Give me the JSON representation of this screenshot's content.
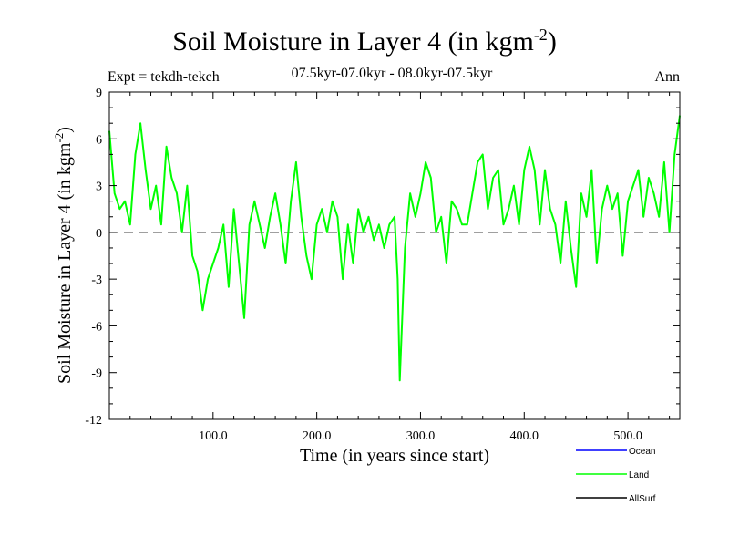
{
  "chart_data": {
    "type": "line",
    "title_main": "Soil Moisture in Layer 4 (in kgm",
    "title_sup": "-2",
    "title_end": ")",
    "subtitle": "07.5kyr-07.0kyr - 08.0kyr-07.5kyr",
    "experiment": "Expt = tekdh-tekch",
    "season": "Ann",
    "xlabel": "Time (in years since start)",
    "ylabel_main": "Soil Moisture in Layer 4 (in kgm",
    "ylabel_sup": "-2",
    "ylabel_end": ")",
    "xlim": [
      0,
      550
    ],
    "ylim": [
      -12,
      9
    ],
    "xticks": [
      100,
      200,
      300,
      400,
      500
    ],
    "xtick_labels": [
      "100.0",
      "200.0",
      "300.0",
      "400.0",
      "500.0"
    ],
    "yticks": [
      -12,
      -9,
      -6,
      -3,
      0,
      3,
      6,
      9
    ],
    "ytick_labels": [
      "-12",
      "-9",
      "-6",
      "-3",
      "0",
      "3",
      "6",
      "9"
    ],
    "zero_line": "dashed",
    "series": [
      {
        "name": "Ocean",
        "color": "#0000ff",
        "values": []
      },
      {
        "name": "Land",
        "color": "#00ff00",
        "x": [
          0,
          5,
          10,
          15,
          20,
          25,
          30,
          35,
          40,
          45,
          50,
          55,
          60,
          65,
          70,
          75,
          80,
          85,
          90,
          95,
          100,
          105,
          110,
          115,
          120,
          125,
          130,
          135,
          140,
          145,
          150,
          155,
          160,
          165,
          170,
          175,
          180,
          185,
          190,
          195,
          200,
          205,
          210,
          215,
          220,
          225,
          230,
          235,
          240,
          245,
          250,
          255,
          260,
          265,
          270,
          275,
          278,
          280,
          285,
          290,
          295,
          300,
          305,
          310,
          315,
          320,
          325,
          330,
          335,
          340,
          345,
          350,
          355,
          360,
          365,
          370,
          375,
          380,
          385,
          390,
          395,
          400,
          405,
          410,
          415,
          420,
          425,
          430,
          435,
          440,
          445,
          450,
          455,
          460,
          465,
          470,
          475,
          480,
          485,
          490,
          495,
          500,
          505,
          510,
          515,
          520,
          525,
          530,
          535,
          540,
          545,
          550
        ],
        "values": [
          6.5,
          2.5,
          1.5,
          2.0,
          0.5,
          5.0,
          7.0,
          4.0,
          1.5,
          3.0,
          0.5,
          5.5,
          3.5,
          2.5,
          0.0,
          3.0,
          -1.5,
          -2.5,
          -5.0,
          -3.0,
          -2.0,
          -1.0,
          0.5,
          -3.5,
          1.5,
          -2.0,
          -5.5,
          0.5,
          2.0,
          0.5,
          -1.0,
          1.0,
          2.5,
          0.5,
          -2.0,
          2.0,
          4.5,
          1.0,
          -1.5,
          -3.0,
          0.5,
          1.5,
          0.0,
          2.0,
          1.0,
          -3.0,
          0.5,
          -2.0,
          1.5,
          0.0,
          1.0,
          -0.5,
          0.5,
          -1.0,
          0.5,
          1.0,
          -3.0,
          -9.5,
          -1.0,
          2.5,
          1.0,
          2.5,
          4.5,
          3.5,
          0.0,
          1.0,
          -2.0,
          2.0,
          1.5,
          0.5,
          0.5,
          2.5,
          4.5,
          5.0,
          1.5,
          3.5,
          4.0,
          0.5,
          1.5,
          3.0,
          0.5,
          4.0,
          5.5,
          4.0,
          0.5,
          4.0,
          1.5,
          0.5,
          -2.0,
          2.0,
          -1.0,
          -3.5,
          2.5,
          1.0,
          4.0,
          -2.0,
          1.5,
          3.0,
          1.5,
          2.5,
          -1.5,
          2.0,
          3.0,
          4.0,
          1.0,
          3.5,
          2.5,
          1.0,
          4.5,
          0.0,
          5.0,
          7.5
        ]
      },
      {
        "name": "AllSurf",
        "color": "#000000",
        "values": []
      }
    ],
    "legend_position": "bottom-right"
  }
}
